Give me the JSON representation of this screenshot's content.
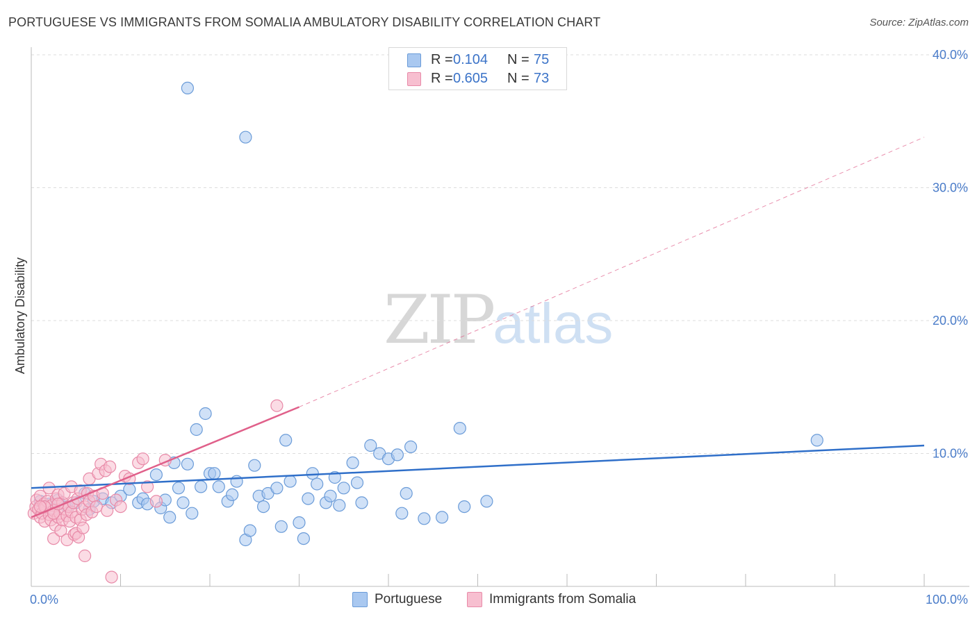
{
  "header": {
    "title": "PORTUGUESE VS IMMIGRANTS FROM SOMALIA AMBULATORY DISABILITY CORRELATION CHART",
    "source": "Source: ZipAtlas.com"
  },
  "watermark": {
    "zip": "ZIP",
    "atlas": "atlas"
  },
  "legend": {
    "rows": [
      {
        "r_label": "R =",
        "r_value": "0.104",
        "n_label": "N =",
        "n_value": "75",
        "color": "#a9c8f0",
        "edge": "#6a9bd8"
      },
      {
        "r_label": "R =",
        "r_value": "0.605",
        "n_label": "N =",
        "n_value": "73",
        "color": "#f7bfd0",
        "edge": "#e88aa8"
      }
    ]
  },
  "bottom_legend": {
    "items": [
      {
        "label": "Portuguese",
        "color": "#a9c8f0",
        "edge": "#6a9bd8"
      },
      {
        "label": "Immigrants from Somalia",
        "color": "#f7bfd0",
        "edge": "#e88aa8"
      }
    ]
  },
  "chart_data": {
    "type": "scatter",
    "title": "PORTUGUESE VS IMMIGRANTS FROM SOMALIA AMBULATORY DISABILITY CORRELATION CHART",
    "xlabel": "",
    "ylabel": "Ambulatory Disability",
    "xlim": [
      0,
      100
    ],
    "ylim": [
      0,
      40
    ],
    "x_tick_labels": [
      "0.0%",
      "100.0%"
    ],
    "y_ticks": [
      10,
      20,
      30,
      40
    ],
    "y_tick_labels": [
      "10.0%",
      "20.0%",
      "30.0%",
      "40.0%"
    ],
    "grid": true,
    "series": [
      {
        "name": "Portuguese",
        "color": "#a9c8f0",
        "edge": "#6a9bd8",
        "line_color": "#2f6fc9",
        "trend": {
          "x0": 0,
          "y0": 7.4,
          "x1": 100,
          "y1": 10.6
        },
        "points": [
          [
            1,
            6.4
          ],
          [
            1.5,
            6.0
          ],
          [
            2,
            6.2
          ],
          [
            2.5,
            5.8
          ],
          [
            3,
            6.5
          ],
          [
            4,
            6.0
          ],
          [
            5,
            6.3
          ],
          [
            6,
            7.0
          ],
          [
            6.5,
            5.8
          ],
          [
            7,
            6.4
          ],
          [
            8,
            6.6
          ],
          [
            9,
            6.3
          ],
          [
            10,
            6.8
          ],
          [
            11,
            7.3
          ],
          [
            12,
            6.3
          ],
          [
            12.5,
            6.6
          ],
          [
            13,
            6.2
          ],
          [
            14,
            8.4
          ],
          [
            14.5,
            5.9
          ],
          [
            15,
            6.5
          ],
          [
            15.5,
            5.2
          ],
          [
            16,
            9.3
          ],
          [
            16.5,
            7.4
          ],
          [
            17,
            6.3
          ],
          [
            17.5,
            9.2
          ],
          [
            18,
            5.5
          ],
          [
            18.5,
            11.8
          ],
          [
            19,
            7.5
          ],
          [
            19.5,
            13.0
          ],
          [
            20,
            8.5
          ],
          [
            20.5,
            8.5
          ],
          [
            21,
            7.5
          ],
          [
            22,
            6.4
          ],
          [
            22.5,
            6.9
          ],
          [
            23,
            7.9
          ],
          [
            24,
            3.5
          ],
          [
            24.5,
            4.2
          ],
          [
            25,
            9.1
          ],
          [
            25.5,
            6.8
          ],
          [
            26,
            6.0
          ],
          [
            26.5,
            7.0
          ],
          [
            27.5,
            7.4
          ],
          [
            28,
            4.5
          ],
          [
            28.5,
            11.0
          ],
          [
            29,
            7.9
          ],
          [
            30,
            4.8
          ],
          [
            30.5,
            3.6
          ],
          [
            31,
            6.6
          ],
          [
            31.5,
            8.5
          ],
          [
            32,
            7.7
          ],
          [
            33,
            6.3
          ],
          [
            33.5,
            6.8
          ],
          [
            34,
            8.2
          ],
          [
            34.5,
            6.1
          ],
          [
            35,
            7.4
          ],
          [
            36,
            9.3
          ],
          [
            36.5,
            7.8
          ],
          [
            37,
            6.3
          ],
          [
            38,
            10.6
          ],
          [
            39,
            10.0
          ],
          [
            40,
            9.6
          ],
          [
            41,
            9.9
          ],
          [
            41.5,
            5.5
          ],
          [
            42,
            7.0
          ],
          [
            42.5,
            10.5
          ],
          [
            44,
            5.1
          ],
          [
            46,
            5.2
          ],
          [
            48,
            11.9
          ],
          [
            48.5,
            6.0
          ],
          [
            51,
            6.4
          ],
          [
            88,
            11.0
          ],
          [
            17.5,
            37.5
          ],
          [
            24,
            33.8
          ]
        ]
      },
      {
        "name": "Immigrants from Somalia",
        "color": "#f7bfd0",
        "edge": "#e88aa8",
        "line_color": "#e0608a",
        "trend": {
          "x0": 0,
          "y0": 5.2,
          "x1": 30,
          "y1": 13.5
        },
        "trend_ext": {
          "x0": 30,
          "y0": 13.5,
          "x1": 100,
          "y1": 33.8
        },
        "points": [
          [
            0.3,
            5.5
          ],
          [
            0.5,
            6.0
          ],
          [
            0.6,
            6.5
          ],
          [
            0.8,
            5.8
          ],
          [
            1,
            5.2
          ],
          [
            1,
            6.8
          ],
          [
            1.2,
            5.5
          ],
          [
            1.4,
            6.2
          ],
          [
            1.5,
            4.9
          ],
          [
            1.6,
            5.9
          ],
          [
            1.8,
            6.4
          ],
          [
            2,
            5.4
          ],
          [
            2,
            7.4
          ],
          [
            2.2,
            5.0
          ],
          [
            2.3,
            6.1
          ],
          [
            2.5,
            5.7
          ],
          [
            2.5,
            3.6
          ],
          [
            2.7,
            4.6
          ],
          [
            2.8,
            6.6
          ],
          [
            3,
            5.2
          ],
          [
            3,
            6.9
          ],
          [
            3.2,
            5.5
          ],
          [
            3.3,
            4.2
          ],
          [
            3.5,
            6.3
          ],
          [
            3.5,
            5.0
          ],
          [
            3.7,
            7.0
          ],
          [
            3.8,
            5.8
          ],
          [
            4,
            5.3
          ],
          [
            4,
            3.5
          ],
          [
            4.2,
            6.0
          ],
          [
            4.3,
            4.9
          ],
          [
            4.5,
            5.6
          ],
          [
            4.5,
            7.5
          ],
          [
            4.7,
            6.3
          ],
          [
            4.8,
            3.9
          ],
          [
            5,
            5.2
          ],
          [
            5,
            4.0
          ],
          [
            5.2,
            6.6
          ],
          [
            5.3,
            3.7
          ],
          [
            5.5,
            5.0
          ],
          [
            5.5,
            7.2
          ],
          [
            5.7,
            5.8
          ],
          [
            5.8,
            4.4
          ],
          [
            6,
            6.0
          ],
          [
            6,
            2.3
          ],
          [
            6.2,
            5.4
          ],
          [
            6.3,
            7.0
          ],
          [
            6.5,
            6.4
          ],
          [
            6.5,
            8.1
          ],
          [
            6.8,
            5.6
          ],
          [
            7,
            6.8
          ],
          [
            7.3,
            6.0
          ],
          [
            7.5,
            8.5
          ],
          [
            7.8,
            9.2
          ],
          [
            8,
            7.0
          ],
          [
            8.3,
            8.7
          ],
          [
            8.5,
            5.7
          ],
          [
            8.8,
            9.0
          ],
          [
            9,
            0.7
          ],
          [
            9.5,
            6.5
          ],
          [
            10,
            6.0
          ],
          [
            10.5,
            8.3
          ],
          [
            11,
            8.1
          ],
          [
            12,
            9.3
          ],
          [
            12.5,
            9.6
          ],
          [
            13,
            7.5
          ],
          [
            14,
            6.4
          ],
          [
            15,
            9.5
          ],
          [
            1.5,
            6.0
          ],
          [
            2.5,
            5.5
          ],
          [
            3,
            6.2
          ],
          [
            1,
            6.0
          ],
          [
            27.5,
            13.6
          ]
        ]
      }
    ]
  }
}
